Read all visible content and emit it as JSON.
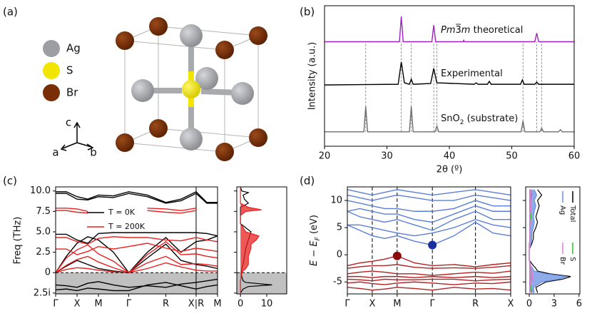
{
  "structure": {
    "label": "(a)",
    "legend": [
      {
        "name": "Ag",
        "color": "#9c9ea3"
      },
      {
        "name": "S",
        "color": "#f2e600"
      },
      {
        "name": "Br",
        "color": "#7a2e05"
      }
    ],
    "axes": [
      "a",
      "b",
      "c"
    ]
  },
  "chart_data": [
    {
      "type": "line",
      "label": "(b)",
      "xlabel": "2θ (º)",
      "ylabel": "Intensity (a.u.)",
      "xlim": [
        20,
        60
      ],
      "xticks": [
        20,
        30,
        40,
        50,
        60
      ],
      "ylim": [
        0,
        195
      ],
      "reference_lines": [
        26.6,
        32.3,
        33.9,
        37.5,
        38.0,
        51.8,
        54.0,
        54.8
      ],
      "series": [
        {
          "name": [
            "Pm",
            "3̅",
            "m",
            " theoretical"
          ],
          "color": "#a020c8",
          "x": [
            20,
            32.0,
            32.3,
            32.6,
            37.2,
            37.5,
            37.8,
            42.2,
            42.3,
            42.4,
            53.7,
            54.0,
            54.3,
            60
          ],
          "values": [
            145,
            145,
            180,
            145,
            145,
            168,
            145,
            145,
            147,
            145,
            145,
            157,
            145,
            145
          ]
        },
        {
          "name": [
            "Experimental"
          ],
          "color": "#000000",
          "x": [
            20,
            31.8,
            32.3,
            32.8,
            33.6,
            33.9,
            34.2,
            37.0,
            37.5,
            38.0,
            44.0,
            44.3,
            44.6,
            46.1,
            46.4,
            46.7,
            51.4,
            51.7,
            52.0,
            53.7,
            54.0,
            54.3,
            60
          ],
          "values": [
            85,
            86,
            117,
            88,
            86,
            93,
            86,
            87,
            108,
            88,
            86,
            88,
            86,
            86,
            90,
            86,
            86,
            92,
            86,
            86,
            89,
            86,
            86
          ]
        },
        {
          "name": [
            "SnO",
            "2",
            " (substrate)"
          ],
          "color": "#6e6e6e",
          "x": [
            20,
            26.3,
            26.6,
            26.9,
            33.6,
            33.9,
            34.2,
            37.7,
            38.0,
            38.3,
            51.5,
            51.8,
            52.1,
            54.5,
            54.8,
            55.1,
            57.5,
            57.8,
            58.1,
            60
          ],
          "values": [
            20,
            20,
            55,
            20,
            20,
            55,
            20,
            20,
            28,
            20,
            20,
            35,
            20,
            20,
            25,
            20,
            20,
            23,
            20,
            20
          ]
        }
      ]
    },
    {
      "type": "line",
      "label": "(c)",
      "ylabel": "Freq (THz)",
      "xlim": [
        0,
        7.56
      ],
      "xticks": [
        {
          "value": 0,
          "label": "Γ"
        },
        {
          "value": 1,
          "label": "X"
        },
        {
          "value": 2,
          "label": "M"
        },
        {
          "value": 3.414,
          "label": "Γ"
        },
        {
          "value": 5.146,
          "label": "R"
        },
        {
          "value": 6.56,
          "label": "X|R"
        },
        {
          "value": 7.56,
          "label": "M"
        }
      ],
      "split_tick": 5,
      "ylim": [
        -2.6,
        10.5
      ],
      "yticks": [
        {
          "value": -2.5,
          "label": "2.5i"
        },
        0,
        2.5,
        {
          "value": 5,
          "label": "5.0"
        },
        7.5,
        {
          "value": 10,
          "label": "10.0"
        }
      ],
      "zero_line": true,
      "imaginary_shade": true,
      "legend": "upper center",
      "k": [
        0,
        0.5,
        1,
        1.5,
        2,
        2.7,
        3.414,
        4.28,
        5.146,
        5.85,
        6.56,
        7.06,
        7.56
      ],
      "series": [
        {
          "name": "T = 0K",
          "color": "#000000",
          "bands": [
            [
              9.9,
              9.9,
              9.3,
              9.0,
              9.5,
              9.4,
              9.9,
              9.5,
              8.6,
              9.0,
              9.9,
              8.6,
              8.6
            ],
            [
              9.7,
              9.7,
              9.0,
              8.9,
              9.3,
              9.2,
              9.7,
              9.3,
              8.5,
              8.8,
              9.7,
              8.5,
              8.5
            ],
            [
              4.7,
              4.7,
              4.0,
              3.6,
              4.8,
              4.9,
              4.9,
              4.9,
              4.9,
              4.9,
              4.9,
              4.8,
              4.5
            ],
            [
              0,
              2.0,
              3.6,
              4.4,
              4.0,
              2.5,
              0,
              2.5,
              4.3,
              2.5,
              3.8,
              4.0,
              4.5
            ],
            [
              0,
              0.8,
              1.5,
              1.0,
              0.5,
              0.2,
              0,
              1.8,
              3.5,
              1.5,
              1.0,
              0.8,
              0.5
            ],
            [
              -1.5,
              -1.6,
              -1.8,
              -1.3,
              -1.1,
              -1.5,
              -1.8,
              -1.6,
              -1.8,
              -1.4,
              -1.2,
              -1.0,
              -0.8
            ],
            [
              -2.1,
              -2.0,
              -2.2,
              -1.9,
              -2.0,
              -2.2,
              -2.2,
              -1.5,
              -1.2,
              -1.6,
              -2.0,
              -1.7,
              -1.5
            ]
          ]
        },
        {
          "name": "T = 200K",
          "color": "#e8201f",
          "bands": [
            [
              7.9,
              7.9,
              7.8,
              7.5,
              null,
              null,
              null,
              7.9,
              7.8,
              7.6,
              7.9,
              null,
              null
            ],
            [
              7.6,
              7.6,
              7.4,
              7.3,
              null,
              null,
              null,
              7.6,
              7.4,
              7.3,
              7.6,
              null,
              null
            ],
            [
              4.3,
              4.3,
              3.8,
              3.5,
              4.2,
              4.4,
              4.3,
              4.3,
              4.0,
              3.9,
              4.3,
              4.0,
              3.8
            ],
            [
              2.9,
              2.9,
              2.2,
              2.6,
              3.2,
              2.9,
              3.2,
              3.6,
              3.0,
              2.6,
              3.0,
              2.8,
              2.6
            ],
            [
              0,
              1.8,
              2.8,
              3.4,
              2.3,
              1.4,
              0,
              2.2,
              3.8,
              2.2,
              2.3,
              2.0,
              1.8
            ],
            [
              0,
              0.9,
              1.6,
              2.0,
              1.3,
              0.6,
              0,
              1.2,
              2.0,
              1.0,
              1.1,
              1.0,
              0.8
            ],
            [
              0,
              0.4,
              0.6,
              0.5,
              0.3,
              0.1,
              0,
              0.5,
              1.2,
              0.7,
              0.3,
              0.2,
              0.2
            ]
          ]
        }
      ],
      "dos": {
        "xlim": [
          -1.4,
          17.6
        ],
        "xticks": [
          0,
          10
        ],
        "y": [
          -2.5,
          -2,
          -1.7,
          -1.5,
          -1.2,
          -1,
          -0.5,
          0,
          0.5,
          1,
          2,
          3,
          3.5,
          4,
          4.5,
          5,
          6,
          7,
          7.5,
          7.7,
          8,
          8.5,
          9,
          9.5,
          9.8,
          10,
          10.5
        ],
        "series": [
          {
            "color": "#000000",
            "fill": false,
            "values": [
              0,
              1,
              3,
              12,
              2,
              1,
              0.5,
              0.3,
              0.5,
              1,
              1.5,
              2,
              2.5,
              3,
              3.5,
              4,
              0,
              0,
              0,
              0,
              0,
              3,
              1.5,
              1,
              3,
              0.5,
              0
            ]
          },
          {
            "color": "#e8201f",
            "fill": true,
            "values": [
              0,
              0,
              0,
              0,
              0,
              0,
              0.3,
              0.3,
              2,
              3,
              3,
              4,
              4,
              6,
              7,
              2,
              0,
              0,
              2,
              8,
              3,
              0,
              0,
              0,
              0,
              0,
              0
            ]
          }
        ]
      }
    },
    {
      "type": "line",
      "label": "(d)",
      "ylabel": [
        "E",
        " − ",
        "E",
        "F",
        " (eV)"
      ],
      "xlim": [
        0,
        6.56
      ],
      "xticks": [
        {
          "value": 0,
          "label": "Γ"
        },
        {
          "value": 1,
          "label": "X"
        },
        {
          "value": 2,
          "label": "M"
        },
        {
          "value": 3.414,
          "label": "Γ"
        },
        {
          "value": 5.146,
          "label": "R"
        },
        {
          "value": 6.56,
          "label": "X"
        }
      ],
      "x_grid": true,
      "ylim": [
        -7.2,
        12.5
      ],
      "yticks": [
        -5,
        0,
        5,
        10
      ],
      "k": [
        0,
        0.5,
        1,
        1.5,
        2,
        2.7,
        3.414,
        4.28,
        5.146,
        5.85,
        6.56
      ],
      "series": [
        {
          "color": "#5b7fd9",
          "bands": [
            [
              5.5,
              4.5,
              3.5,
              3.0,
              3.5,
              2.5,
              1.8,
              3.5,
              6.0,
              4.0,
              3.5
            ],
            [
              5.5,
              5.5,
              5.0,
              4.5,
              4.0,
              3.5,
              4.0,
              5.0,
              6.5,
              5.5,
              5.0
            ],
            [
              8.0,
              7.0,
              6.5,
              6.0,
              6.5,
              5.5,
              4.5,
              6.5,
              8.0,
              6.5,
              6.5
            ],
            [
              8.0,
              8.5,
              8.0,
              7.5,
              7.5,
              6.5,
              6.0,
              7.5,
              9.0,
              8.0,
              8.0
            ],
            [
              10.0,
              9.5,
              9.0,
              8.5,
              8.5,
              8.0,
              8.0,
              8.5,
              10.0,
              9.0,
              9.0
            ],
            [
              11.0,
              10.5,
              10.0,
              10.5,
              11.0,
              10.5,
              10.0,
              10.0,
              11.0,
              10.5,
              10.0
            ],
            [
              12.0,
              11.5,
              11.0,
              11.5,
              12.0,
              11.5,
              11.0,
              11.5,
              12.0,
              11.5,
              11.0
            ]
          ]
        },
        {
          "color": "#b22222",
          "bands": [
            [
              -2.0,
              -1.5,
              -1.2,
              -0.8,
              -0.2,
              -1.5,
              -2.0,
              -1.8,
              -2.2,
              -1.8,
              -1.5
            ],
            [
              -2.5,
              -2.2,
              -2.0,
              -2.0,
              -1.8,
              -2.3,
              -2.5,
              -2.4,
              -2.5,
              -2.3,
              -2.0
            ],
            [
              -3.5,
              -3.2,
              -3.0,
              -3.2,
              -3.5,
              -3.5,
              -3.8,
              -3.5,
              -3.2,
              -3.4,
              -3.0
            ],
            [
              -4.0,
              -4.0,
              -4.2,
              -4.0,
              -4.0,
              -4.2,
              -4.0,
              -4.2,
              -4.0,
              -4.2,
              -4.0
            ],
            [
              -4.5,
              -4.6,
              -4.8,
              -4.5,
              -4.6,
              -4.6,
              -4.5,
              -4.5,
              -4.8,
              -4.6,
              -4.5
            ],
            [
              -5.2,
              -5.0,
              -5.3,
              -5.5,
              -5.2,
              -5.0,
              -5.2,
              -5.5,
              -5.2,
              -5.3,
              -5.0
            ],
            [
              -6.0,
              -6.2,
              -6.5,
              -6.3,
              -6.0,
              -6.2,
              -6.5,
              -6.0,
              -6.3,
              -6.2,
              -6.5
            ]
          ]
        }
      ],
      "markers": [
        {
          "x": 2,
          "y": -0.2,
          "color": "#8b0a0a"
        },
        {
          "x": 3.414,
          "y": 1.8,
          "color": "#1a2fa0"
        }
      ],
      "dos": {
        "xlim": [
          -0.43,
          6.1
        ],
        "xticks": [
          0,
          3,
          6
        ],
        "y": [
          -7,
          -6,
          -5,
          -4.5,
          -4,
          -3.5,
          -3,
          -2.5,
          -2,
          -1,
          0,
          1,
          2,
          3,
          4,
          5,
          6,
          7,
          8,
          9,
          10,
          11,
          12
        ],
        "legend": "right",
        "series": [
          {
            "name": "Total",
            "color": "#000000",
            "fill": false,
            "values": [
              1,
              0.8,
              2,
              4,
              5,
              2.5,
              1,
              0.8,
              0.5,
              0,
              0,
              0,
              0.3,
              0.5,
              0.5,
              0.8,
              1,
              0.8,
              1,
              1.2,
              1,
              1.5,
              1
            ]
          },
          {
            "name": "Ag",
            "color": "#6a8fe0",
            "fill": true,
            "values": [
              0.6,
              0.5,
              1.5,
              3.5,
              4.5,
              2,
              0.6,
              0.4,
              0.2,
              0,
              0,
              0,
              0.2,
              0.3,
              0.3,
              0.5,
              0.6,
              0.5,
              0.6,
              0.8,
              0.6,
              0.9,
              0.6
            ]
          },
          {
            "name": "S",
            "color": "#22c322",
            "fill": true,
            "values": [
              0.3,
              0.2,
              0.2,
              0.3,
              0.3,
              0.2,
              0.2,
              0.2,
              0.2,
              0,
              0,
              0,
              0,
              0.1,
              0.1,
              0.1,
              0.2,
              0.2,
              0.2,
              0.2,
              0.2,
              0.3,
              0.2
            ]
          },
          {
            "name": "Br",
            "color": "#e07ee0",
            "fill": true,
            "values": [
              0.2,
              0.1,
              0.3,
              0.4,
              0.5,
              0.4,
              0.3,
              0.3,
              0.2,
              0,
              0,
              0,
              0.1,
              0.1,
              0.1,
              0.1,
              0.2,
              0.1,
              0.2,
              0.2,
              0.2,
              0.2,
              0.2
            ]
          }
        ]
      }
    }
  ]
}
